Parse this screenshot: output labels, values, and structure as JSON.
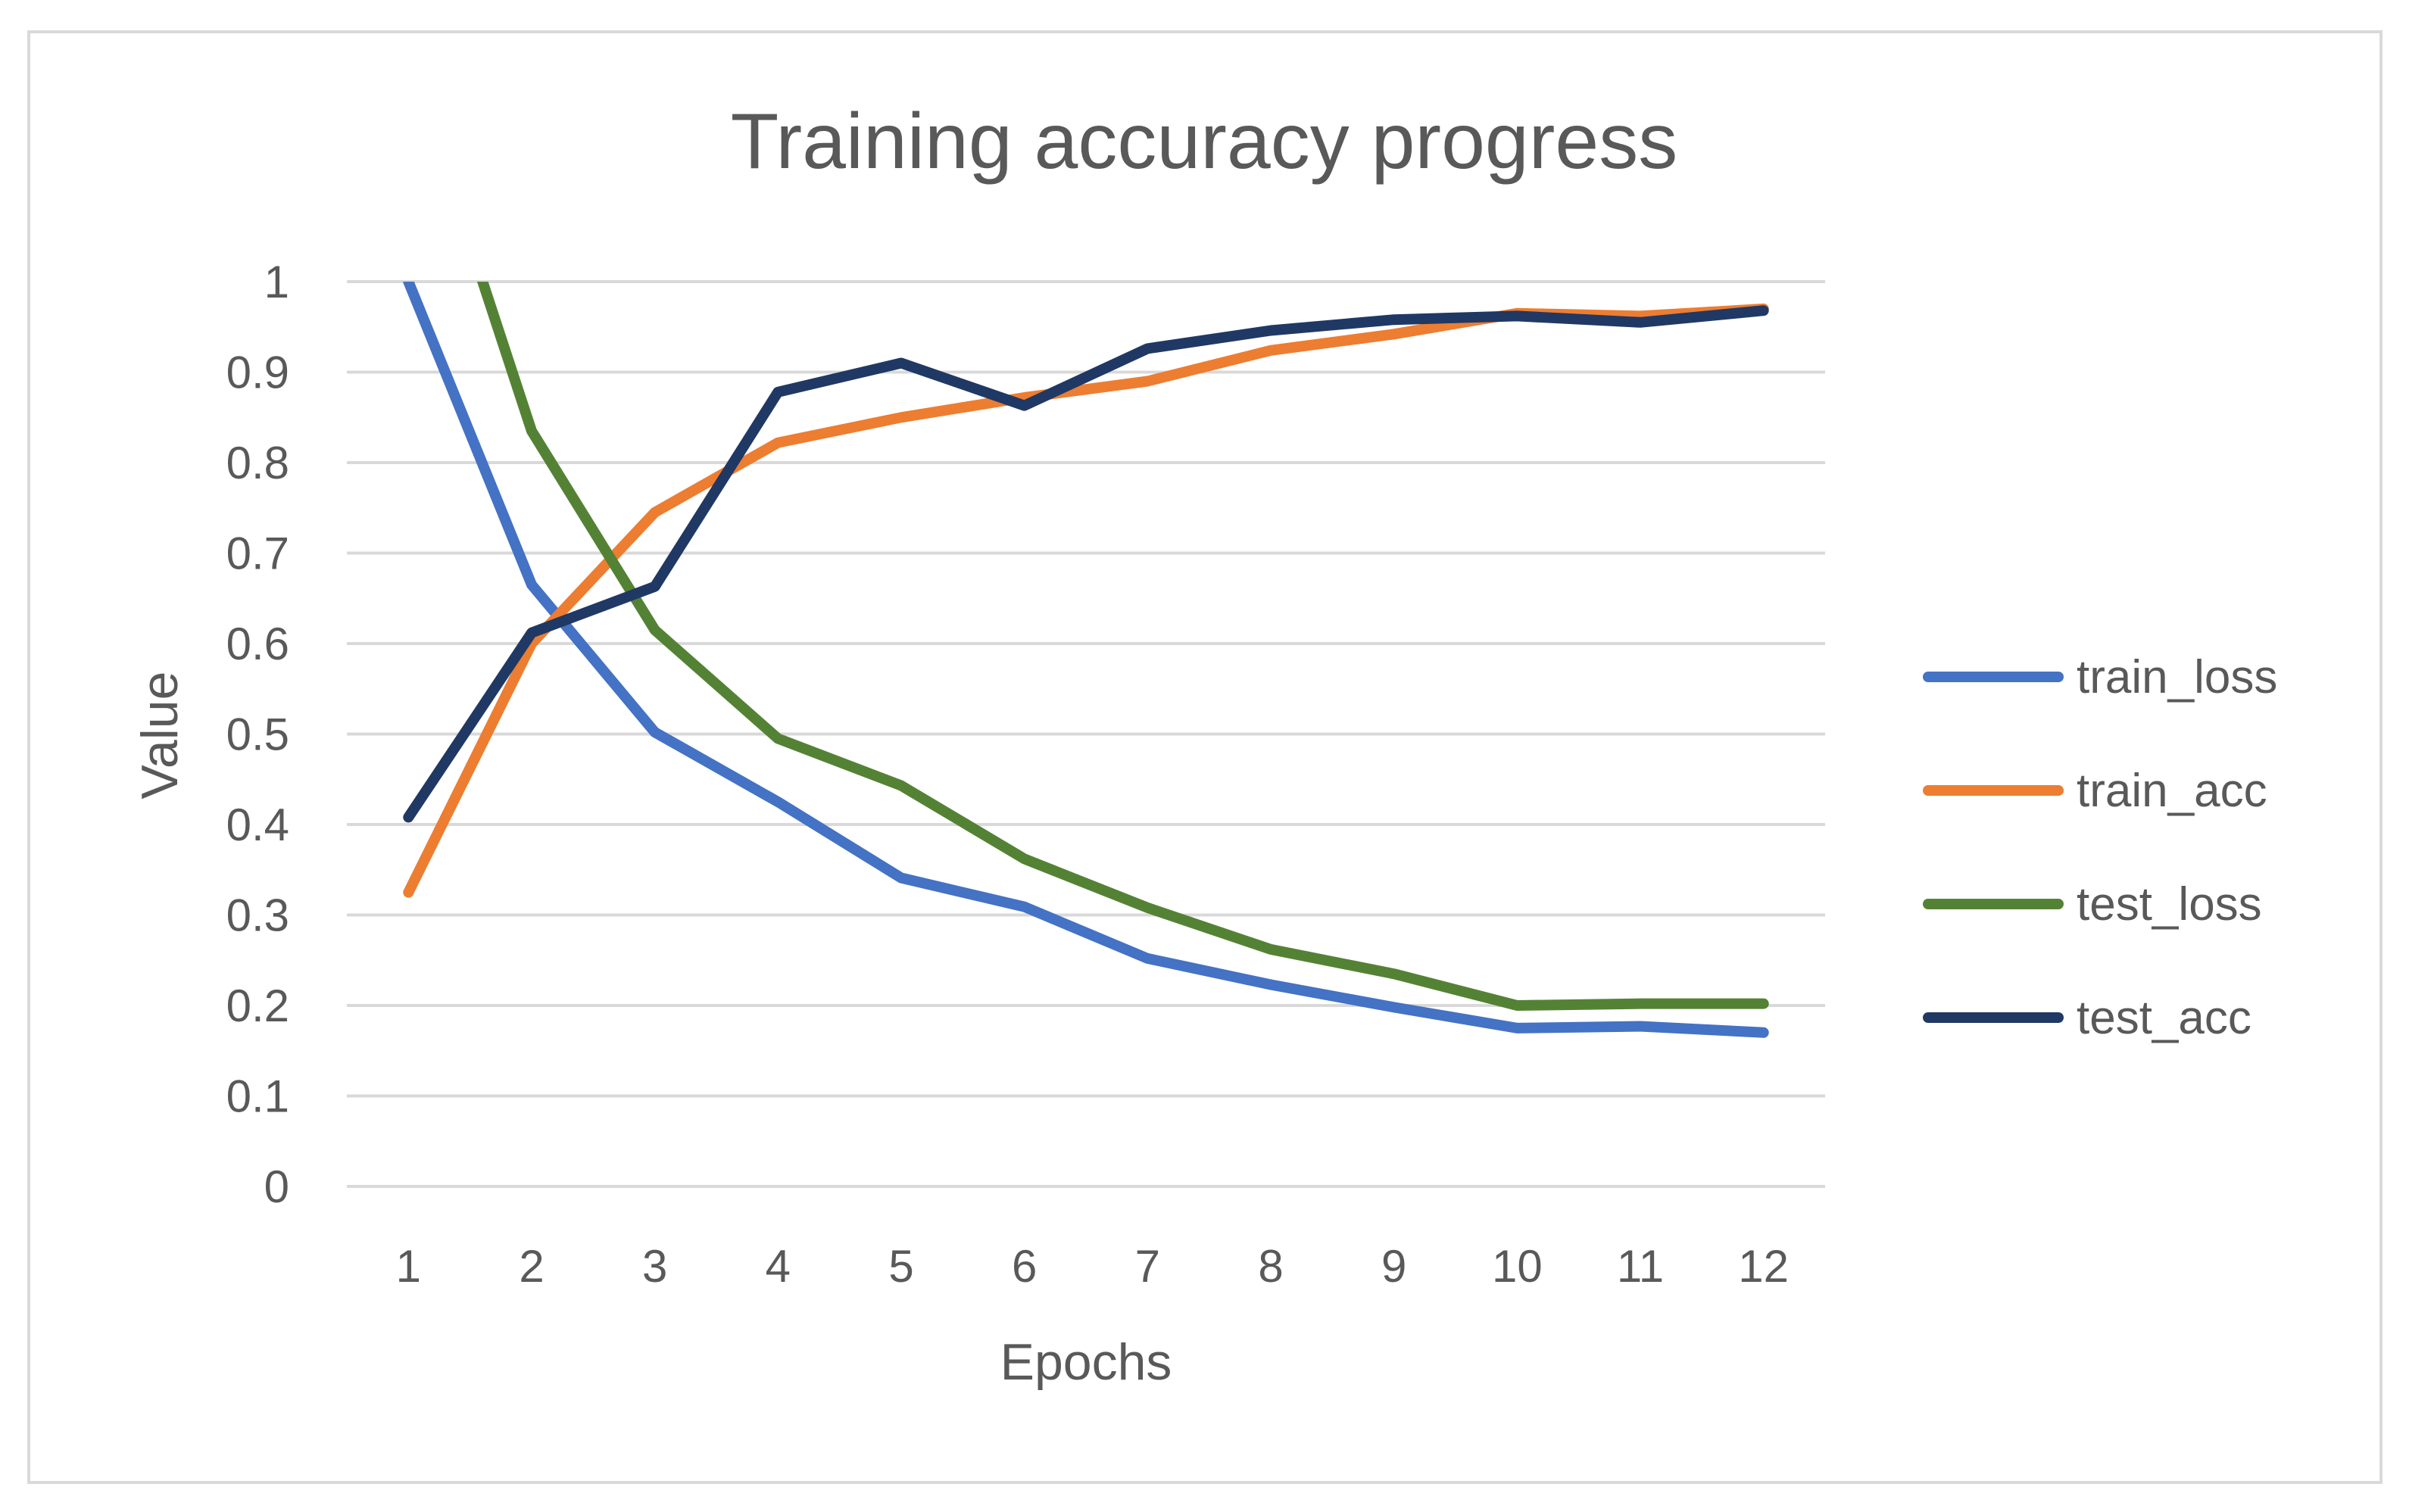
{
  "chart_data": {
    "type": "line",
    "title": "Training accuracy progress",
    "xlabel": "Epochs",
    "ylabel": "Value",
    "categories": [
      "1",
      "2",
      "3",
      "4",
      "5",
      "6",
      "7",
      "8",
      "9",
      "10",
      "11",
      "12"
    ],
    "ylim": [
      0,
      1
    ],
    "yticks": [
      "0",
      "0.1",
      "0.2",
      "0.3",
      "0.4",
      "0.5",
      "0.6",
      "0.7",
      "0.8",
      "0.9",
      "1"
    ],
    "grid": true,
    "legend_position": "right",
    "series": [
      {
        "name": "train_loss",
        "color": "#4472c4",
        "values": [
          1.0,
          0.665,
          0.502,
          0.425,
          0.341,
          0.309,
          0.252,
          0.223,
          0.198,
          0.175,
          0.177,
          0.17
        ]
      },
      {
        "name": "train_acc",
        "color": "#ed7d31",
        "values": [
          0.325,
          0.6,
          0.745,
          0.822,
          0.85,
          0.872,
          0.89,
          0.924,
          0.942,
          0.965,
          0.962,
          0.97
        ]
      },
      {
        "name": "test_loss",
        "color": "#548235",
        "values": [
          1.25,
          0.835,
          0.615,
          0.495,
          0.443,
          0.362,
          0.308,
          0.262,
          0.235,
          0.2,
          0.202,
          0.202
        ]
      },
      {
        "name": "test_acc",
        "color": "#203864",
        "values": [
          0.408,
          0.612,
          0.663,
          0.878,
          0.91,
          0.863,
          0.926,
          0.946,
          0.958,
          0.962,
          0.955,
          0.968
        ]
      }
    ]
  }
}
